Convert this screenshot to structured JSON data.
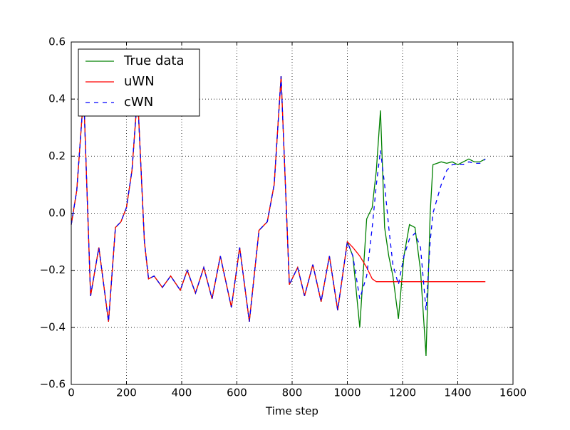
{
  "chart_data": {
    "type": "line",
    "xlabel": "Time step",
    "x": [
      0,
      20,
      45,
      70,
      100,
      135,
      160,
      180,
      200,
      220,
      240,
      265,
      280,
      300,
      330,
      360,
      395,
      420,
      450,
      480,
      510,
      540,
      580,
      610,
      645,
      680,
      710,
      735,
      760,
      790,
      820,
      845,
      875,
      905,
      935,
      965,
      1000,
      1020,
      1045,
      1070,
      1090,
      1105,
      1120,
      1135,
      1150,
      1165,
      1185,
      1205,
      1225,
      1245,
      1265,
      1285,
      1300,
      1310,
      1340,
      1360,
      1380,
      1400,
      1420,
      1440,
      1460,
      1480,
      1500
    ],
    "series": [
      {
        "name": "True data",
        "color": "#008000",
        "dash": false,
        "values": [
          -0.04,
          0.08,
          0.42,
          -0.29,
          -0.12,
          -0.38,
          -0.05,
          -0.03,
          0.02,
          0.15,
          0.42,
          -0.1,
          -0.23,
          -0.22,
          -0.26,
          -0.22,
          -0.27,
          -0.2,
          -0.28,
          -0.19,
          -0.3,
          -0.15,
          -0.33,
          -0.12,
          -0.38,
          -0.06,
          -0.03,
          0.1,
          0.48,
          -0.25,
          -0.19,
          -0.29,
          -0.18,
          -0.31,
          -0.15,
          -0.34,
          -0.1,
          -0.15,
          -0.4,
          -0.02,
          0.02,
          0.15,
          0.36,
          -0.05,
          -0.15,
          -0.22,
          -0.37,
          -0.15,
          -0.04,
          -0.05,
          -0.2,
          -0.5,
          0.0,
          0.17,
          0.18,
          0.175,
          0.18,
          0.17,
          0.18,
          0.19,
          0.18,
          0.18,
          0.19
        ]
      },
      {
        "name": "uWN",
        "color": "#ff0000",
        "dash": false,
        "values": [
          -0.04,
          0.08,
          0.42,
          -0.29,
          -0.12,
          -0.38,
          -0.05,
          -0.03,
          0.02,
          0.15,
          0.42,
          -0.1,
          -0.23,
          -0.22,
          -0.26,
          -0.22,
          -0.27,
          -0.2,
          -0.28,
          -0.19,
          -0.3,
          -0.15,
          -0.33,
          -0.12,
          -0.38,
          -0.06,
          -0.03,
          0.1,
          0.48,
          -0.25,
          -0.19,
          -0.29,
          -0.18,
          -0.31,
          -0.15,
          -0.34,
          -0.1,
          -0.12,
          -0.15,
          -0.19,
          -0.23,
          -0.24,
          -0.24,
          -0.24,
          -0.24,
          -0.24,
          -0.24,
          -0.24,
          -0.24,
          -0.24,
          -0.24,
          -0.24,
          -0.24,
          -0.24,
          -0.24,
          -0.24,
          -0.24,
          -0.24,
          -0.24,
          -0.24,
          -0.24,
          -0.24,
          -0.24
        ]
      },
      {
        "name": "cWN",
        "color": "#0000ff",
        "dash": true,
        "values": [
          -0.04,
          0.08,
          0.42,
          -0.29,
          -0.12,
          -0.38,
          -0.05,
          -0.03,
          0.02,
          0.15,
          0.42,
          -0.1,
          -0.23,
          -0.22,
          -0.26,
          -0.22,
          -0.27,
          -0.2,
          -0.28,
          -0.19,
          -0.3,
          -0.15,
          -0.33,
          -0.12,
          -0.38,
          -0.06,
          -0.03,
          0.1,
          0.48,
          -0.25,
          -0.19,
          -0.29,
          -0.18,
          -0.31,
          -0.15,
          -0.34,
          -0.1,
          -0.15,
          -0.3,
          -0.22,
          -0.05,
          0.1,
          0.22,
          0.1,
          -0.05,
          -0.18,
          -0.25,
          -0.15,
          -0.09,
          -0.07,
          -0.12,
          -0.34,
          -0.1,
          0.0,
          0.1,
          0.15,
          0.17,
          0.17,
          0.17,
          0.18,
          0.175,
          0.175,
          0.19
        ]
      }
    ],
    "xlim": [
      0,
      1600
    ],
    "xticks": [
      0,
      200,
      400,
      600,
      800,
      1000,
      1200,
      1400,
      1600
    ],
    "ylim": [
      -0.6,
      0.6
    ],
    "yticks": [
      {
        "value": -0.6,
        "label": "−0.6"
      },
      {
        "value": -0.4,
        "label": "−0.4"
      },
      {
        "value": -0.2,
        "label": "−0.2"
      },
      {
        "value": 0,
        "label": "0.0"
      },
      0.2,
      0.4,
      0.6
    ],
    "grid": true,
    "legend": "upper left"
  }
}
